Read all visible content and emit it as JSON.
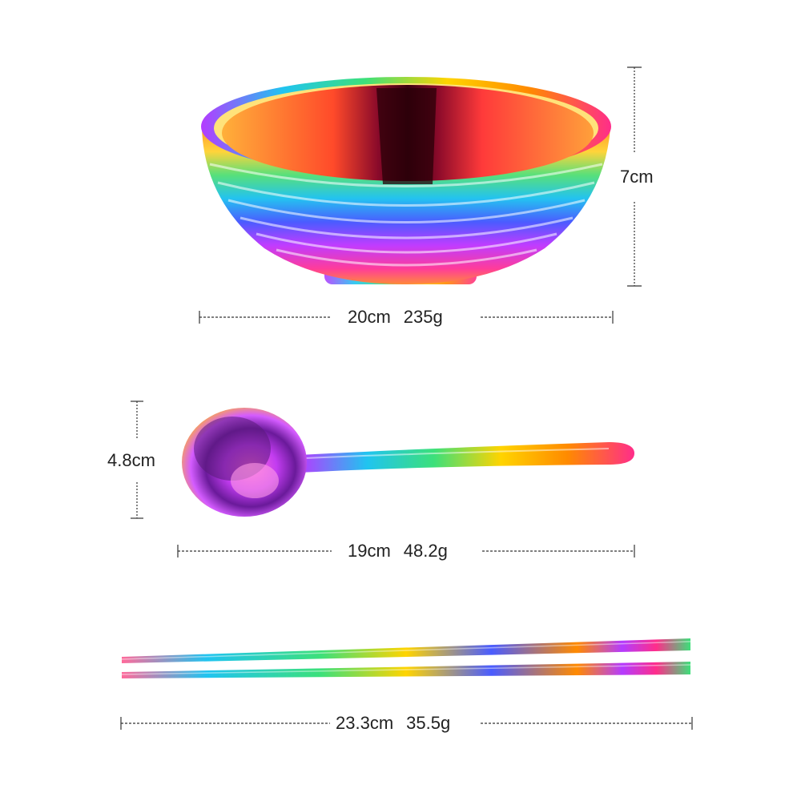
{
  "colors": {
    "background": "#ffffff",
    "dimension_line": "#333333",
    "iridescent": [
      "#ff2d8a",
      "#ff8a00",
      "#ffd400",
      "#3ce07a",
      "#20c4f0",
      "#4a5cff",
      "#b43cff"
    ]
  },
  "bowl": {
    "height_label": "7cm",
    "diameter_label": "20cm",
    "weight_label": "235g"
  },
  "spoon": {
    "width_label": "4.8cm",
    "length_label": "19cm",
    "weight_label": "48.2g"
  },
  "chopsticks": {
    "length_label": "23.3cm",
    "weight_label": "35.5g"
  }
}
